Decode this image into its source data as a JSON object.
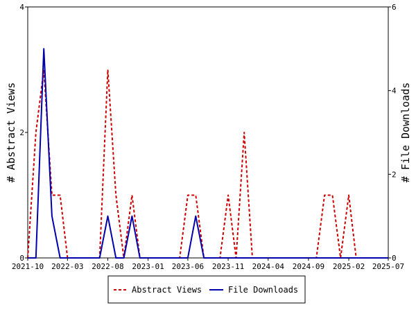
{
  "chart_data": {
    "type": "line",
    "x": [
      "2021-10-01",
      "2021-11-01",
      "2021-12-01",
      "2022-01-01",
      "2022-02-01",
      "2022-03-01",
      "2022-04-01",
      "2022-05-01",
      "2022-06-01",
      "2022-07-01",
      "2022-08-01",
      "2022-09-01",
      "2022-10-01",
      "2022-11-01",
      "2022-12-01",
      "2023-01-01",
      "2023-02-01",
      "2023-03-01",
      "2023-04-01",
      "2023-05-01",
      "2023-06-01",
      "2023-07-01",
      "2023-08-01",
      "2023-09-01",
      "2023-10-01",
      "2023-11-01",
      "2023-12-01",
      "2024-01-01",
      "2024-02-01",
      "2024-03-01",
      "2024-04-01",
      "2024-05-01",
      "2024-06-01",
      "2024-07-01",
      "2024-08-01",
      "2024-09-01",
      "2024-10-01",
      "2024-11-01",
      "2024-12-01",
      "2025-01-01",
      "2025-02-01",
      "2025-03-01",
      "2025-04-01",
      "2025-05-01",
      "2025-06-01",
      "2025-07-01"
    ],
    "series": [
      {
        "name": "Abstract Views",
        "axis": "left",
        "color": "#cc0000",
        "dash": true,
        "values": [
          0,
          2,
          3,
          1,
          1,
          0,
          0,
          0,
          0,
          0,
          3,
          1,
          0,
          1,
          0,
          0,
          0,
          0,
          0,
          0,
          1,
          1,
          0,
          0,
          0,
          1,
          0,
          2,
          0,
          0,
          0,
          0,
          0,
          0,
          0,
          0,
          0,
          1,
          1,
          0,
          1,
          0,
          0,
          0,
          0,
          0
        ]
      },
      {
        "name": "File Downloads",
        "axis": "right",
        "color": "#0000aa",
        "dash": false,
        "values": [
          0,
          0,
          5,
          1,
          0,
          0,
          0,
          0,
          0,
          0,
          1,
          0,
          0,
          1,
          0,
          0,
          0,
          0,
          0,
          0,
          0,
          1,
          0,
          0,
          0,
          0,
          0,
          0,
          0,
          0,
          0,
          0,
          0,
          0,
          0,
          0,
          0,
          0,
          0,
          0,
          0,
          0,
          0,
          0,
          0,
          0
        ]
      }
    ],
    "x_ticks": [
      "2021-10",
      "2022-03",
      "2022-08",
      "2023-01",
      "2023-06",
      "2023-11",
      "2024-04",
      "2024-09",
      "2025-02",
      "2025-07"
    ],
    "y_left": {
      "label": "# Abstract Views",
      "ylim": [
        0,
        4
      ],
      "ticks": [
        0,
        2,
        4
      ]
    },
    "y_right": {
      "label": "# File Downloads",
      "ylim": [
        0,
        6
      ],
      "ticks": [
        0,
        2,
        4,
        6
      ]
    },
    "legend": {
      "placement": "bottom",
      "entries": [
        "Abstract Views",
        "File Downloads"
      ]
    },
    "grid": false
  }
}
